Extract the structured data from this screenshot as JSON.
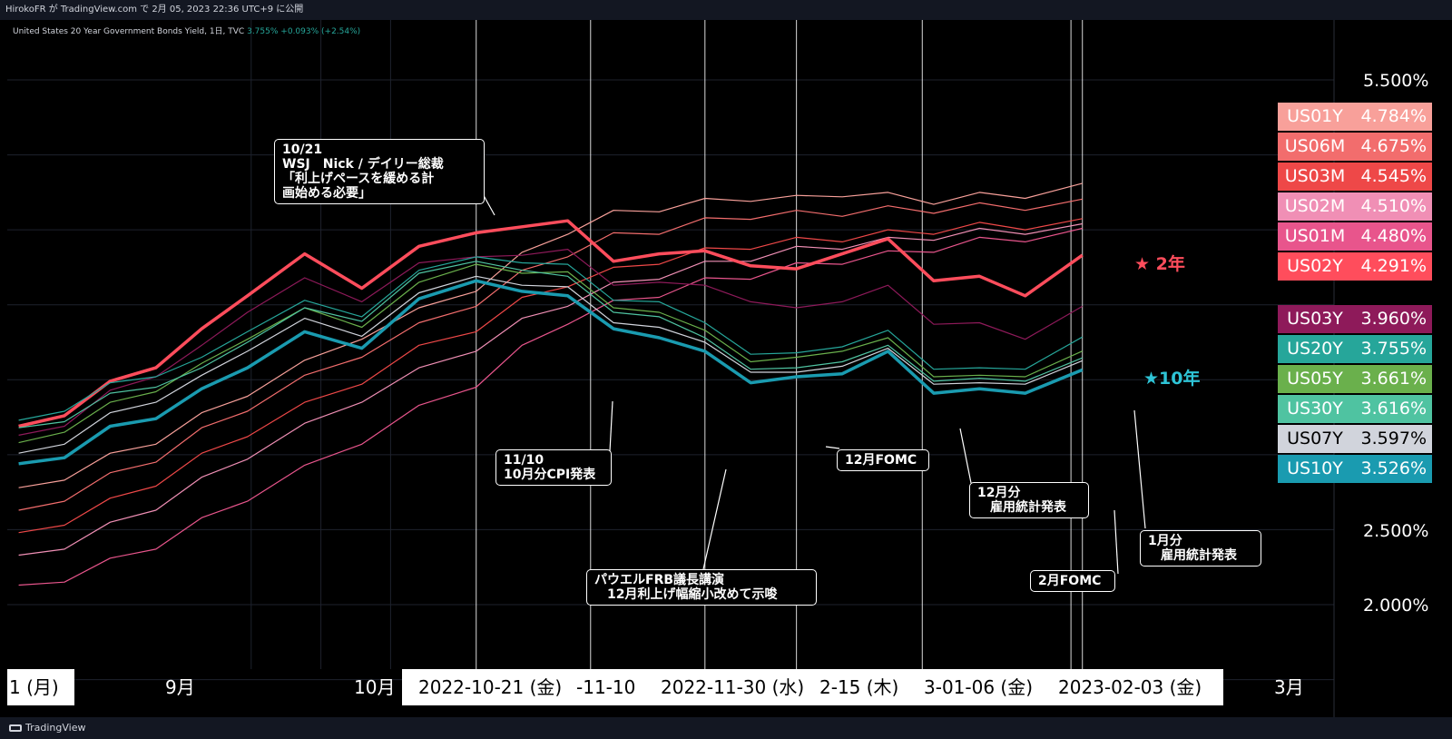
{
  "header": {
    "publish_text": "HirokoFR が TradingView.com で 2月 05, 2023 22:36 UTC+9 に公開"
  },
  "legend": {
    "symbol": "United States 20 Year Government Bonds Yield, 1日, TVC",
    "value": "3.755%",
    "change": "+0.093% (+2.54%)"
  },
  "footer": {
    "brand": "TradingView"
  },
  "chart_data": {
    "type": "line",
    "title": "",
    "xlabel": "",
    "ylabel": "",
    "ylim": [
      1.5,
      6.0
    ],
    "y_ticks": [
      "5.500%",
      "2.500%",
      "2.000%"
    ],
    "y_tick_values": [
      5.5,
      2.5,
      2.0
    ],
    "x_tick_labels": {
      "left": "1 (月)",
      "sep": "9月",
      "oct": "10月",
      "d1": "2022-10-21 (金)",
      "d2": "-11-10",
      "d3": "2022-11-30 (水)",
      "d4": "2-15 (木)",
      "d5": "3-01-06 (金)",
      "d6": "2023-02-03 (金)",
      "mar": "3月"
    },
    "vlines_days": [
      80,
      100,
      120,
      136,
      158,
      184,
      186
    ],
    "series": [
      {
        "name": "US01Y",
        "value_label": "4.784%",
        "color": "#f8a09a",
        "y": [
          2.75,
          2.86,
          2.98,
          3.1,
          3.25,
          3.42,
          3.6,
          3.8,
          3.95,
          4.12,
          4.32,
          4.5,
          4.6,
          4.65,
          4.68,
          4.72,
          4.7,
          4.75,
          4.72,
          4.7,
          4.72,
          4.74,
          4.78
        ]
      },
      {
        "name": "US06M",
        "value_label": "4.675%",
        "color": "#f26d6d",
        "y": [
          2.6,
          2.72,
          2.85,
          2.98,
          3.15,
          3.32,
          3.5,
          3.68,
          3.85,
          4.02,
          4.2,
          4.35,
          4.45,
          4.5,
          4.55,
          4.6,
          4.6,
          4.62,
          4.63,
          4.64,
          4.65,
          4.66,
          4.675
        ]
      },
      {
        "name": "US03M",
        "value_label": "4.545%",
        "color": "#ee4848",
        "y": [
          2.45,
          2.56,
          2.68,
          2.82,
          2.98,
          3.15,
          3.32,
          3.5,
          3.7,
          3.85,
          4.02,
          4.15,
          4.22,
          4.3,
          4.35,
          4.4,
          4.42,
          4.45,
          4.47,
          4.5,
          4.52,
          4.53,
          4.545
        ]
      },
      {
        "name": "US02M",
        "value_label": "4.510%",
        "color": "#f08fb5",
        "y": [
          2.3,
          2.4,
          2.52,
          2.66,
          2.82,
          3.0,
          3.18,
          3.38,
          3.55,
          3.72,
          3.88,
          4.02,
          4.12,
          4.2,
          4.26,
          4.32,
          4.36,
          4.4,
          4.42,
          4.46,
          4.48,
          4.5,
          4.51
        ]
      },
      {
        "name": "US01M",
        "value_label": "4.480%",
        "color": "#e8558c",
        "y": [
          2.1,
          2.18,
          2.28,
          2.4,
          2.55,
          2.72,
          2.9,
          3.1,
          3.3,
          3.48,
          3.7,
          3.9,
          4.0,
          4.08,
          4.15,
          4.2,
          4.25,
          4.3,
          4.33,
          4.38,
          4.42,
          4.45,
          4.48
        ]
      },
      {
        "name": "US02Y",
        "value_label": "4.291%",
        "color": "#ff4d5c",
        "bold": true,
        "y": [
          3.15,
          3.3,
          3.45,
          3.62,
          3.8,
          4.1,
          4.3,
          4.15,
          4.35,
          4.52,
          4.48,
          4.6,
          4.25,
          4.38,
          4.32,
          4.3,
          4.2,
          4.38,
          4.4,
          4.2,
          4.15,
          4.1,
          4.291
        ]
      },
      {
        "name": "US03Y",
        "value_label": "3.960%",
        "color": "#8e1a5a",
        "y": [
          3.1,
          3.22,
          3.4,
          3.55,
          3.7,
          3.98,
          4.15,
          4.05,
          4.25,
          4.35,
          4.3,
          4.4,
          4.1,
          4.18,
          4.1,
          4.05,
          3.95,
          4.05,
          4.1,
          3.9,
          3.85,
          3.8,
          3.96
        ]
      },
      {
        "name": "US20Y",
        "value_label": "3.755%",
        "color": "#26a69a",
        "y": [
          3.2,
          3.32,
          3.45,
          3.55,
          3.62,
          3.85,
          4.0,
          3.95,
          4.2,
          4.35,
          4.25,
          4.3,
          4.0,
          4.05,
          3.85,
          3.7,
          3.65,
          3.75,
          3.8,
          3.6,
          3.55,
          3.6,
          3.755
        ]
      },
      {
        "name": "US05Y",
        "value_label": "3.661%",
        "color": "#6ab04c",
        "y": [
          3.05,
          3.18,
          3.32,
          3.45,
          3.58,
          3.8,
          3.95,
          3.88,
          4.12,
          4.3,
          4.18,
          4.25,
          3.95,
          3.98,
          3.8,
          3.65,
          3.62,
          3.72,
          3.75,
          3.55,
          3.5,
          3.55,
          3.661
        ]
      },
      {
        "name": "US30Y",
        "value_label": "3.616%",
        "color": "#4fc3a1",
        "y": [
          3.15,
          3.25,
          3.38,
          3.48,
          3.55,
          3.78,
          3.95,
          3.92,
          4.18,
          4.32,
          4.2,
          4.22,
          3.92,
          3.95,
          3.75,
          3.6,
          3.55,
          3.65,
          3.7,
          3.52,
          3.48,
          3.52,
          3.616
        ]
      },
      {
        "name": "US07Y",
        "value_label": "3.597%",
        "color": "#d1d4dc",
        "y": [
          2.98,
          3.1,
          3.25,
          3.38,
          3.5,
          3.72,
          3.88,
          3.82,
          4.05,
          4.22,
          4.1,
          4.15,
          3.85,
          3.88,
          3.72,
          3.58,
          3.52,
          3.62,
          3.68,
          3.5,
          3.45,
          3.5,
          3.597
        ]
      },
      {
        "name": "US10Y",
        "value_label": "3.526%",
        "color": "#1a9bb0",
        "bold": true,
        "y": [
          2.9,
          3.02,
          3.15,
          3.28,
          3.4,
          3.62,
          3.78,
          3.75,
          4.0,
          4.2,
          4.05,
          4.1,
          3.8,
          3.82,
          3.65,
          3.52,
          3.48,
          3.58,
          3.65,
          3.45,
          3.4,
          3.45,
          3.526
        ]
      }
    ],
    "x_days": [
      0,
      8,
      16,
      24,
      32,
      40,
      50,
      60,
      70,
      80,
      88,
      96,
      104,
      112,
      120,
      128,
      136,
      144,
      152,
      160,
      168,
      176,
      186
    ],
    "x_range": [
      -2,
      230
    ]
  },
  "star_labels": {
    "two_year": "2年",
    "ten_year": "10年"
  },
  "annotations": [
    {
      "id": "ann-1021",
      "text": "10/21\nWSJ　Nick / デイリー総裁\n「利上げペースを緩める計\n画始める必要」"
    },
    {
      "id": "ann-1110",
      "text": "11/10\n10月分CPI発表"
    },
    {
      "id": "ann-powell",
      "text": "パウエルFRB議長講演\n　12月利上げ幅縮小改めて示唆"
    },
    {
      "id": "ann-fomc12",
      "text": "12月FOMC"
    },
    {
      "id": "ann-jobs12",
      "text": "12月分\n　雇用統計発表"
    },
    {
      "id": "ann-fomc2",
      "text": "2月FOMC"
    },
    {
      "id": "ann-jobs1",
      "text": "1月分\n　雇用統計発表"
    }
  ]
}
